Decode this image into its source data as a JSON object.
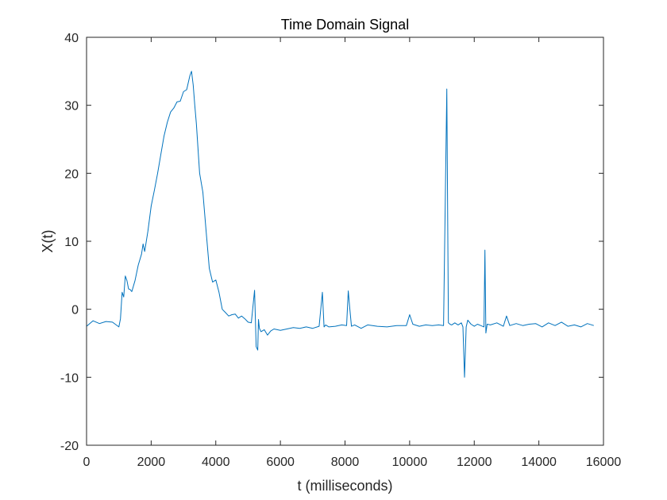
{
  "chart_data": {
    "type": "line",
    "title": "Time Domain Signal",
    "xlabel": "t (milliseconds)",
    "ylabel": "X(t)",
    "xlim": [
      0,
      16000
    ],
    "ylim": [
      -20,
      40
    ],
    "xticks": [
      0,
      2000,
      4000,
      6000,
      8000,
      10000,
      12000,
      14000,
      16000
    ],
    "xtick_labels": [
      "0",
      "2000",
      "4000",
      "6000",
      "8000",
      "10000",
      "12000",
      "14000",
      "16000"
    ],
    "yticks": [
      -20,
      -10,
      0,
      10,
      20,
      30,
      40
    ],
    "ytick_labels": [
      "-20",
      "-10",
      "0",
      "10",
      "20",
      "30",
      "40"
    ],
    "grid": false,
    "legend": "none",
    "line_color": "#0072BD",
    "series": [
      {
        "x": [
          0,
          200,
          400,
          600,
          800,
          1000,
          1050,
          1100,
          1150,
          1200,
          1250,
          1300,
          1350,
          1400,
          1500,
          1600,
          1700,
          1750,
          1800,
          1900,
          2000,
          2100,
          2200,
          2300,
          2400,
          2500,
          2600,
          2700,
          2800,
          2900,
          3000,
          3100,
          3200,
          3250,
          3300,
          3350,
          3400,
          3500,
          3600,
          3700,
          3800,
          3900,
          4000,
          4100,
          4200,
          4300,
          4400,
          4500,
          4600,
          4700,
          4800,
          4900,
          5000,
          5100,
          5200,
          5250,
          5300,
          5320,
          5350,
          5400,
          5500,
          5600,
          5700,
          5800,
          6000,
          6200,
          6400,
          6600,
          6800,
          7000,
          7200,
          7300,
          7350,
          7400,
          7500,
          7700,
          7900,
          8050,
          8100,
          8150,
          8200,
          8300,
          8500,
          8700,
          9000,
          9300,
          9600,
          9900,
          10000,
          10100,
          10300,
          10500,
          10700,
          10900,
          11050,
          11150,
          11200,
          11250,
          11300,
          11400,
          11500,
          11600,
          11650,
          11700,
          11750,
          11800,
          11900,
          12000,
          12100,
          12200,
          12300,
          12330,
          12360,
          12400,
          12500,
          12700,
          12900,
          13000,
          13100,
          13300,
          13500,
          13700,
          13900,
          14100,
          14300,
          14500,
          14700,
          14900,
          15100,
          15300,
          15500,
          15700
        ],
        "y": [
          -2.5,
          -1.7,
          -2.1,
          -1.8,
          -1.9,
          -2.6,
          -1.4,
          2.5,
          1.8,
          4.9,
          4.2,
          3.0,
          2.9,
          2.6,
          4.2,
          6.5,
          8.1,
          9.6,
          8.5,
          11.5,
          15.2,
          17.5,
          20.0,
          22.8,
          25.5,
          27.5,
          29.0,
          29.6,
          30.5,
          30.6,
          32.0,
          32.3,
          34.4,
          35.0,
          33.0,
          30.0,
          27.3,
          20.0,
          17.2,
          11.6,
          6.0,
          4.0,
          4.3,
          2.5,
          0.0,
          -0.5,
          -1.0,
          -0.8,
          -0.7,
          -1.3,
          -1.0,
          -1.4,
          -1.9,
          -2.0,
          2.8,
          -5.5,
          -6.0,
          -1.5,
          -2.8,
          -3.3,
          -3.0,
          -3.8,
          -3.2,
          -2.9,
          -3.1,
          -2.9,
          -2.7,
          -2.8,
          -2.6,
          -2.8,
          -2.5,
          2.5,
          -2.6,
          -2.3,
          -2.6,
          -2.5,
          -2.3,
          -2.4,
          2.7,
          0.0,
          -2.5,
          -2.3,
          -2.8,
          -2.3,
          -2.5,
          -2.6,
          -2.4,
          -2.4,
          -0.8,
          -2.2,
          -2.5,
          -2.3,
          -2.4,
          -2.3,
          -2.4,
          32.4,
          -2.0,
          -2.2,
          -2.3,
          -2.0,
          -2.3,
          -2.0,
          -2.6,
          -10.0,
          -2.6,
          -1.6,
          -2.2,
          -2.5,
          -2.2,
          -2.4,
          -2.6,
          8.7,
          -3.5,
          -2.2,
          -2.3,
          -2.0,
          -2.5,
          -1.0,
          -2.4,
          -2.1,
          -2.4,
          -2.2,
          -2.1,
          -2.6,
          -2.0,
          -2.4,
          -1.9,
          -2.5,
          -2.3,
          -2.6,
          -2.1,
          -2.4
        ]
      }
    ]
  }
}
